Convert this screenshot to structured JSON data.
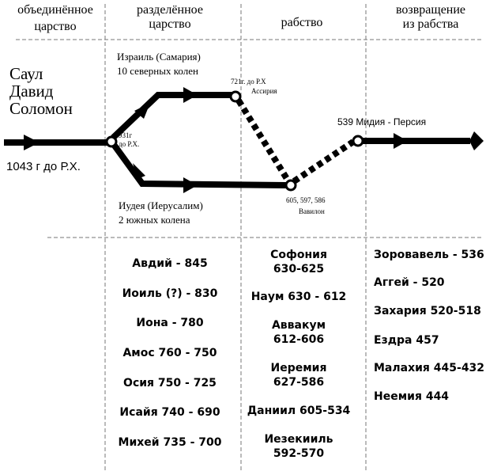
{
  "headers": [
    [
      "объединённое",
      "царство"
    ],
    [
      "разделённое",
      "царство"
    ],
    [
      "рабство"
    ],
    [
      "возвращение",
      "из рабства"
    ]
  ],
  "kings": [
    "Саул",
    "Давид",
    "Соломон"
  ],
  "labels": {
    "start": "1043 г до Р.Х.",
    "israel": [
      "Израиль (Самария)",
      "10 северных колен"
    ],
    "split": [
      "931г",
      "до Р.Х."
    ],
    "assyria": [
      "721г. до Р.Х",
      "Ассирия"
    ],
    "persia": "539 Мидия - Персия",
    "judah": [
      "Иудея (Иерусалим)",
      "2 южных колена"
    ],
    "babylon": [
      "605, 597, 586",
      "Вавилон"
    ]
  },
  "prophets": [
    [
      [
        "Авдий - 845"
      ],
      [
        "Иоиль (?) - 830"
      ],
      [
        "Иона - 780"
      ],
      [
        "Амос 760 - 750"
      ],
      [
        "Осия 750 - 725"
      ],
      [
        "Исайя 740 - 690"
      ],
      [
        "Михей 735 - 700"
      ]
    ],
    [
      [
        "Софония",
        "630-625"
      ],
      [
        "Наум 630 - 612"
      ],
      [
        "Аввакум",
        "612-606"
      ],
      [
        "Иеремия",
        "627-586"
      ],
      [
        "Даниил 605-534"
      ],
      [
        "Иезекииль",
        "592-570"
      ]
    ],
    [
      [
        "Зоровавель - 536"
      ],
      [
        "Аггей  - 520"
      ],
      [
        "Захария 520-518"
      ],
      [
        "Ездра 457"
      ],
      [
        "Малахия 445-432"
      ],
      [
        "Неемия 444"
      ]
    ]
  ]
}
